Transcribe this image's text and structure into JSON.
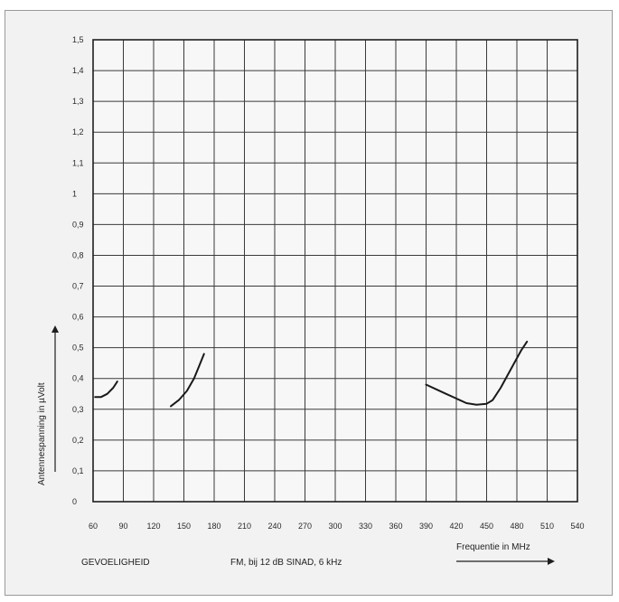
{
  "chart_data": {
    "type": "line",
    "title": "",
    "xlabel": "Frequentie in MHz",
    "ylabel": "Antennespanning in µVolt",
    "xlim": [
      60,
      540
    ],
    "ylim": [
      0,
      1.5
    ],
    "x_ticks": [
      "60",
      "90",
      "120",
      "150",
      "180",
      "210",
      "240",
      "270",
      "300",
      "330",
      "360",
      "390",
      "420",
      "450",
      "480",
      "510",
      "540"
    ],
    "y_ticks": [
      "0",
      "0,1",
      "0,2",
      "0,3",
      "0,4",
      "0,5",
      "0,6",
      "0,7",
      "0,8",
      "0,9",
      "1",
      "1,1",
      "1,2",
      "1,3",
      "1,4",
      "1,5"
    ],
    "grid": true,
    "series": [
      {
        "segments": [
          [
            [
              62,
              0.34
            ],
            [
              68,
              0.34
            ],
            [
              74,
              0.35
            ],
            [
              80,
              0.37
            ],
            [
              84,
              0.39
            ]
          ],
          [
            [
              137,
              0.31
            ],
            [
              145,
              0.33
            ],
            [
              153,
              0.36
            ],
            [
              160,
              0.4
            ],
            [
              165,
              0.44
            ],
            [
              170,
              0.48
            ]
          ],
          [
            [
              390,
              0.38
            ],
            [
              400,
              0.365
            ],
            [
              410,
              0.35
            ],
            [
              420,
              0.335
            ],
            [
              430,
              0.32
            ],
            [
              440,
              0.315
            ],
            [
              450,
              0.318
            ],
            [
              456,
              0.33
            ],
            [
              464,
              0.37
            ],
            [
              474,
              0.43
            ],
            [
              484,
              0.49
            ],
            [
              490,
              0.52
            ]
          ]
        ]
      }
    ],
    "annotations": {
      "left": "GEVOELIGHEID",
      "center": "FM, bij 12 dB SINAD, 6 kHz"
    },
    "colors": {
      "grid": "#3a3a3a",
      "curve": "#1a1a1a",
      "plot_bg": "#f7f7f7"
    }
  }
}
